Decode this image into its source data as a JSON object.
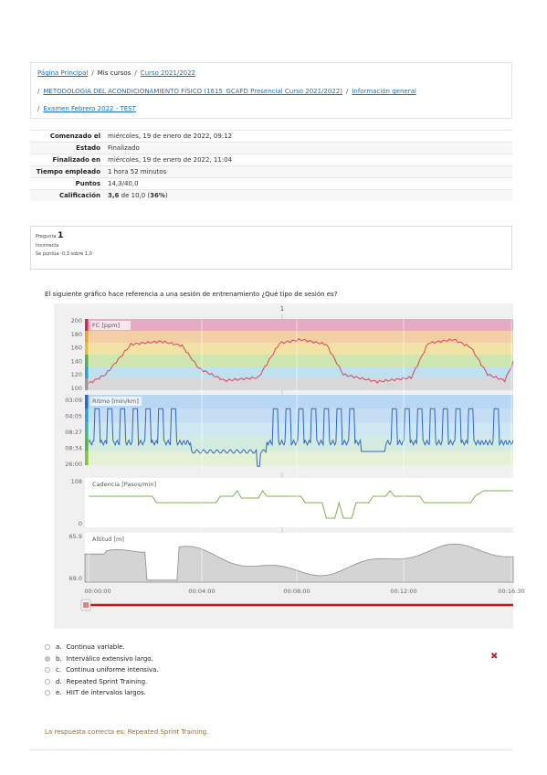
{
  "breadcrumb": {
    "home": "Página Principal",
    "my_courses": "Mis cursos",
    "course_year": "Curso 2021/2022",
    "course": "METODOLOGÍA DEL ACONDICIONAMIENTO FÍSICO (1615_GCAFD Presencial Curso 2021/2022)",
    "section": "Información general",
    "exam": "Examen Febrero 2022 - TEST",
    "separator": "/"
  },
  "summary": [
    {
      "label": "Comenzado el",
      "value": "miércoles, 19 de enero de 2022, 09:12"
    },
    {
      "label": "Estado",
      "value": "Finalizado"
    },
    {
      "label": "Finalizado en",
      "value": "miércoles, 19 de enero de 2022, 11:04"
    },
    {
      "label": "Tiempo empleado",
      "value": "1 hora 52 minutos"
    },
    {
      "label": "Puntos",
      "value": "14,3/40,0"
    },
    {
      "label": "Calificación",
      "grade": "3,6",
      "grade_mid": "de 10,0 (",
      "percent": "36%",
      "grade_end": ")"
    }
  ],
  "question": {
    "prefix": "Pregunta",
    "number": "1",
    "state": "Incorrecta",
    "score": "Se puntúa -0,3 sobre 1,0",
    "text": "El siguiente gráfico hace referencia a una sesión de entrenamiento ¿Qué tipo de sesión es?"
  },
  "chart": {
    "marker": "1",
    "panels": [
      {
        "label": "FC [ppm]",
        "ticks": [
          "200",
          "180",
          "160",
          "140",
          "120",
          "100"
        ]
      },
      {
        "label": "Ritmo [min/km]",
        "ticks": [
          "03:09",
          "04:05",
          "08:27",
          "08:34",
          "26:00"
        ]
      },
      {
        "label": "Cadencia [Pasos/min]",
        "ticks": [
          "108",
          "0"
        ]
      },
      {
        "label": "Altitud [m]",
        "ticks": [
          "65.9",
          "69.0"
        ]
      }
    ],
    "time_ticks": [
      "00:00:00",
      "00:04:00",
      "00:08:00",
      "00:12:00",
      "00:16:30"
    ],
    "colors": {
      "line_hr": "#d9435e",
      "line_pace": "#2f67c8",
      "line_cad": "#7fb04a",
      "line_alt": "#8c8c8c",
      "scrubber": "#cc1111"
    }
  },
  "answers": [
    {
      "letter": "a.",
      "text": "Continua variable.",
      "selected": false
    },
    {
      "letter": "b.",
      "text": "Interválico extensivo largo.",
      "selected": true
    },
    {
      "letter": "c.",
      "text": "Continua uniforme intensiva.",
      "selected": false
    },
    {
      "letter": "d.",
      "text": "Repeated Sprint Training.",
      "selected": false
    },
    {
      "letter": "e.",
      "text": "HIIT de intervalos largos.",
      "selected": false
    }
  ],
  "wrong_icon": "close-icon",
  "feedback": "La respuesta correcta es: Repeated Sprint Training."
}
